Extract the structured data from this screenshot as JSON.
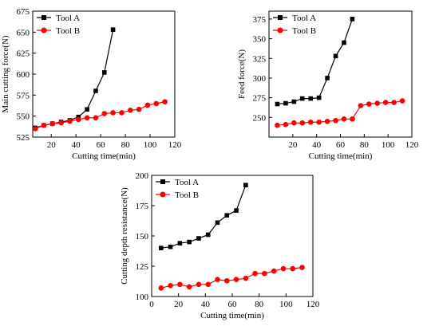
{
  "chart_data": [
    {
      "type": "line",
      "xlabel": "Cutting time(min)",
      "ylabel": "Main cutting force(N)",
      "xlim": [
        5,
        120
      ],
      "ylim": [
        525,
        675
      ],
      "xticks": [
        20,
        40,
        60,
        80,
        100,
        120
      ],
      "yticks": [
        525,
        550,
        575,
        600,
        625,
        650,
        675
      ],
      "grid": false,
      "legend": "top-left",
      "series": [
        {
          "name": "Tool A",
          "color": "#000000",
          "marker": "square",
          "x": [
            7,
            14,
            21,
            28,
            35,
            42,
            49,
            56,
            63,
            70
          ],
          "y": [
            536,
            539,
            541,
            543,
            545,
            549,
            558,
            580,
            602,
            653
          ]
        },
        {
          "name": "Tool B",
          "color": "#ff0000",
          "marker": "circle",
          "x": [
            7,
            14,
            21,
            28,
            35,
            42,
            49,
            56,
            63,
            70,
            77,
            84,
            91,
            98,
            105,
            112
          ],
          "y": [
            535,
            539,
            541,
            542,
            544,
            546,
            548,
            548,
            553,
            554,
            554,
            557,
            558,
            563,
            565,
            567
          ]
        }
      ]
    },
    {
      "type": "line",
      "xlabel": "Cutting time(min)",
      "ylabel": "Feed force(N)",
      "xlim": [
        0,
        120
      ],
      "ylim": [
        225,
        385
      ],
      "xticks": [
        20,
        40,
        60,
        80,
        100,
        120
      ],
      "yticks": [
        250,
        275,
        300,
        325,
        350,
        375
      ],
      "grid": false,
      "legend": "top-left",
      "series": [
        {
          "name": "Tool A",
          "color": "#000000",
          "marker": "square",
          "x": [
            7,
            14,
            21,
            28,
            35,
            42,
            49,
            56,
            63,
            70
          ],
          "y": [
            267,
            268,
            270,
            274,
            274,
            275,
            300,
            328,
            345,
            375
          ]
        },
        {
          "name": "Tool B",
          "color": "#ff0000",
          "marker": "circle",
          "x": [
            7,
            14,
            21,
            28,
            35,
            42,
            49,
            56,
            63,
            70,
            77,
            84,
            91,
            98,
            105,
            112
          ],
          "y": [
            240,
            241,
            243,
            243,
            244,
            244,
            245,
            246,
            248,
            248,
            265,
            267,
            268,
            269,
            269,
            271
          ]
        }
      ]
    },
    {
      "type": "line",
      "xlabel": "Cutting time(min)",
      "ylabel": "Cutting depth resistance(N)",
      "xlim": [
        0,
        120
      ],
      "ylim": [
        100,
        200
      ],
      "xticks": [
        0,
        20,
        40,
        60,
        80,
        100,
        120
      ],
      "yticks": [
        100,
        125,
        150,
        175,
        200
      ],
      "grid": false,
      "legend": "top-left",
      "series": [
        {
          "name": "Tool A",
          "color": "#000000",
          "marker": "square",
          "x": [
            7,
            14,
            21,
            28,
            35,
            42,
            49,
            56,
            63,
            70
          ],
          "y": [
            140,
            141,
            144,
            145,
            148,
            151,
            161,
            167,
            171,
            192
          ]
        },
        {
          "name": "Tool B",
          "color": "#ff0000",
          "marker": "circle",
          "x": [
            7,
            14,
            21,
            28,
            35,
            42,
            49,
            56,
            63,
            70,
            77,
            84,
            91,
            98,
            105,
            112
          ],
          "y": [
            107,
            109,
            110,
            108,
            110,
            110,
            114,
            113,
            114,
            115,
            119,
            119,
            121,
            123,
            123,
            124
          ]
        }
      ]
    }
  ]
}
